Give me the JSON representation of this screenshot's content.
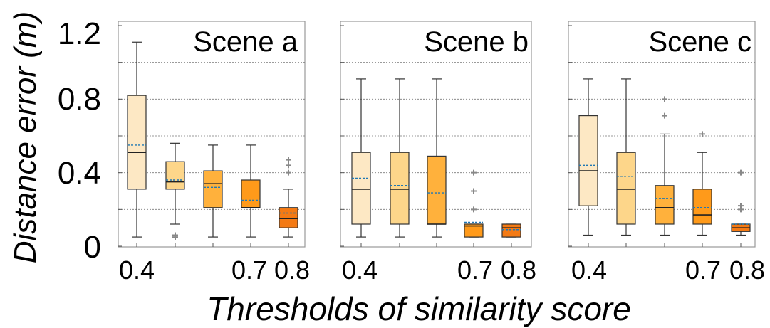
{
  "colors": {
    "box_fills": [
      "#FDE8C4",
      "#FDD68A",
      "#FFB13C",
      "#FF9A1A",
      "#F47A14"
    ],
    "box_stroke": "#333333",
    "mean_line": "#1f77b4",
    "grid": "#7a7a7a",
    "outlier": "#888888"
  },
  "chart_data": {
    "type": "box",
    "ylabel": "Distance error (m)",
    "xlabel": "Thresholds of similarity score",
    "ylim": [
      0,
      1.2
    ],
    "yticks": [
      "0",
      "0.4",
      "0.8",
      "1.2"
    ],
    "xtick_labels": [
      "0.4",
      "",
      "",
      "0.7",
      "0.8"
    ],
    "panels": [
      {
        "title": "Scene a",
        "boxes": [
          {
            "threshold": "0.4",
            "whisker_low": 0.05,
            "q1": 0.31,
            "median": 0.51,
            "q3": 0.82,
            "whisker_high": 1.11,
            "mean": 0.55,
            "outliers": []
          },
          {
            "threshold": "0.5",
            "whisker_low": 0.12,
            "q1": 0.31,
            "median": 0.35,
            "q3": 0.46,
            "whisker_high": 0.56,
            "mean": 0.36,
            "outliers": [
              0.05,
              0.06
            ]
          },
          {
            "threshold": "0.6",
            "whisker_low": 0.05,
            "q1": 0.21,
            "median": 0.34,
            "q3": 0.41,
            "whisker_high": 0.55,
            "mean": 0.32,
            "outliers": []
          },
          {
            "threshold": "0.7",
            "whisker_low": 0.05,
            "q1": 0.21,
            "median": 0.21,
            "q3": 0.36,
            "whisker_high": 0.55,
            "mean": 0.25,
            "outliers": []
          },
          {
            "threshold": "0.8",
            "whisker_low": 0.05,
            "q1": 0.1,
            "median": 0.15,
            "q3": 0.21,
            "whisker_high": 0.31,
            "mean": 0.18,
            "outliers": [
              0.4,
              0.44,
              0.47
            ]
          }
        ]
      },
      {
        "title": "Scene b",
        "boxes": [
          {
            "threshold": "0.4",
            "whisker_low": 0.05,
            "q1": 0.12,
            "median": 0.31,
            "q3": 0.51,
            "whisker_high": 0.91,
            "mean": 0.37,
            "outliers": []
          },
          {
            "threshold": "0.5",
            "whisker_low": 0.05,
            "q1": 0.12,
            "median": 0.31,
            "q3": 0.51,
            "whisker_high": 0.91,
            "mean": 0.33,
            "outliers": []
          },
          {
            "threshold": "0.6",
            "whisker_low": 0.05,
            "q1": 0.12,
            "median": 0.12,
            "q3": 0.49,
            "whisker_high": 0.91,
            "mean": 0.29,
            "outliers": []
          },
          {
            "threshold": "0.7",
            "whisker_low": 0.05,
            "q1": 0.05,
            "median": 0.11,
            "q3": 0.12,
            "whisker_high": 0.12,
            "mean": 0.13,
            "outliers": [
              0.2,
              0.3,
              0.4
            ]
          },
          {
            "threshold": "0.8",
            "whisker_low": 0.05,
            "q1": 0.05,
            "median": 0.1,
            "q3": 0.12,
            "whisker_high": 0.12,
            "mean": 0.09,
            "outliers": []
          }
        ]
      },
      {
        "title": "Scene c",
        "boxes": [
          {
            "threshold": "0.4",
            "whisker_low": 0.06,
            "q1": 0.22,
            "median": 0.41,
            "q3": 0.71,
            "whisker_high": 0.91,
            "mean": 0.44,
            "outliers": []
          },
          {
            "threshold": "0.5",
            "whisker_low": 0.06,
            "q1": 0.12,
            "median": 0.31,
            "q3": 0.51,
            "whisker_high": 0.91,
            "mean": 0.38,
            "outliers": []
          },
          {
            "threshold": "0.6",
            "whisker_low": 0.06,
            "q1": 0.12,
            "median": 0.21,
            "q3": 0.33,
            "whisker_high": 0.61,
            "mean": 0.26,
            "outliers": [
              0.71,
              0.8
            ]
          },
          {
            "threshold": "0.7",
            "whisker_low": 0.06,
            "q1": 0.12,
            "median": 0.17,
            "q3": 0.31,
            "whisker_high": 0.51,
            "mean": 0.21,
            "outliers": [
              0.61
            ]
          },
          {
            "threshold": "0.8",
            "whisker_low": 0.06,
            "q1": 0.08,
            "median": 0.1,
            "q3": 0.12,
            "whisker_high": 0.12,
            "mean": 0.12,
            "outliers": [
              0.2,
              0.22,
              0.4
            ]
          }
        ]
      }
    ]
  }
}
